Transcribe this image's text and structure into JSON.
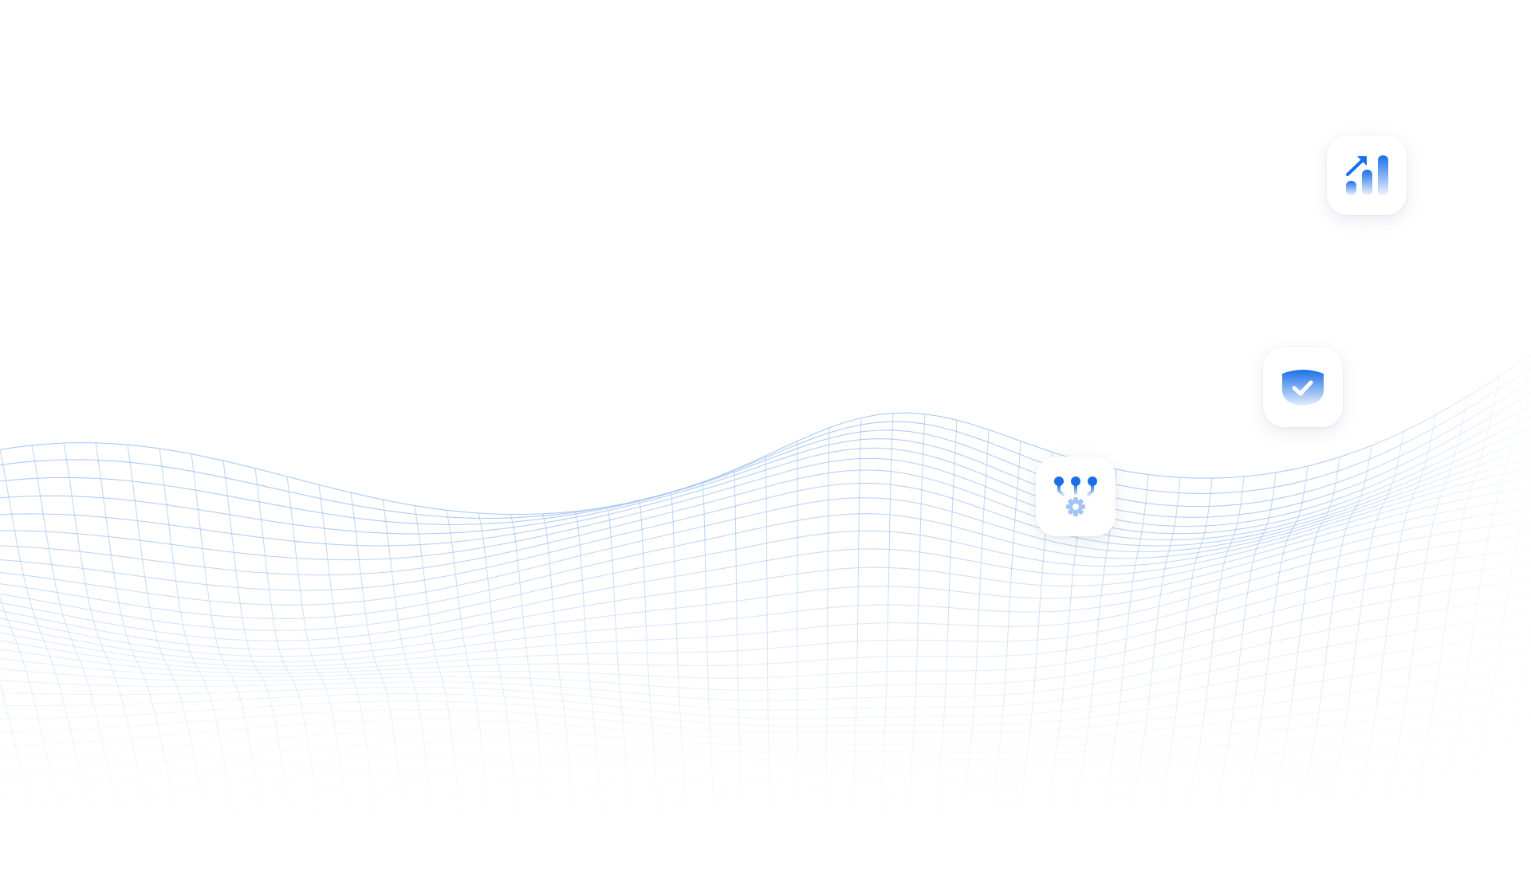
{
  "accent_color": "#1a6fe8",
  "mesh_color": "#9cc0f2",
  "feature_tiles": [
    {
      "icon": "growth-chart-icon"
    },
    {
      "icon": "shield-check-icon"
    },
    {
      "icon": "integration-gear-icon"
    }
  ]
}
